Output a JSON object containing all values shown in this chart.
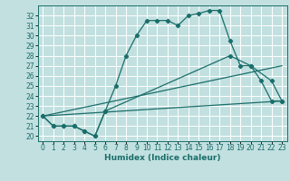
{
  "title": "",
  "xlabel": "Humidex (Indice chaleur)",
  "bg_color": "#c2e0e0",
  "grid_color": "#ffffff",
  "line_color": "#1a6e6a",
  "xlim": [
    -0.5,
    23.5
  ],
  "ylim": [
    19.5,
    33.0
  ],
  "yticks": [
    20,
    21,
    22,
    23,
    24,
    25,
    26,
    27,
    28,
    29,
    30,
    31,
    32
  ],
  "xticks": [
    0,
    1,
    2,
    3,
    4,
    5,
    6,
    7,
    8,
    9,
    10,
    11,
    12,
    13,
    14,
    15,
    16,
    17,
    18,
    19,
    20,
    21,
    22,
    23
  ],
  "line1_x": [
    0,
    1,
    2,
    3,
    4,
    5,
    6,
    7,
    8,
    9,
    10,
    11,
    12,
    13,
    14,
    15,
    16,
    17,
    18,
    19,
    20,
    21,
    22,
    23
  ],
  "line1_y": [
    22,
    21,
    21,
    21,
    20.5,
    20,
    22.5,
    25,
    28,
    30,
    31.5,
    31.5,
    31.5,
    31.0,
    32.0,
    32.2,
    32.5,
    32.5,
    29.5,
    27.0,
    27.0,
    25.5,
    23.5,
    23.5
  ],
  "line2_x": [
    0,
    1,
    2,
    3,
    4,
    5,
    6,
    18,
    20,
    22,
    23
  ],
  "line2_y": [
    22,
    21,
    21,
    21,
    20.5,
    20,
    22.5,
    28,
    27,
    25.5,
    23.5
  ],
  "line3_x": [
    0,
    23
  ],
  "line3_y": [
    22,
    23.5
  ],
  "line4_x": [
    0,
    23
  ],
  "line4_y": [
    22,
    27.0
  ],
  "xlabel_fontsize": 6.5,
  "tick_fontsize": 5.5
}
